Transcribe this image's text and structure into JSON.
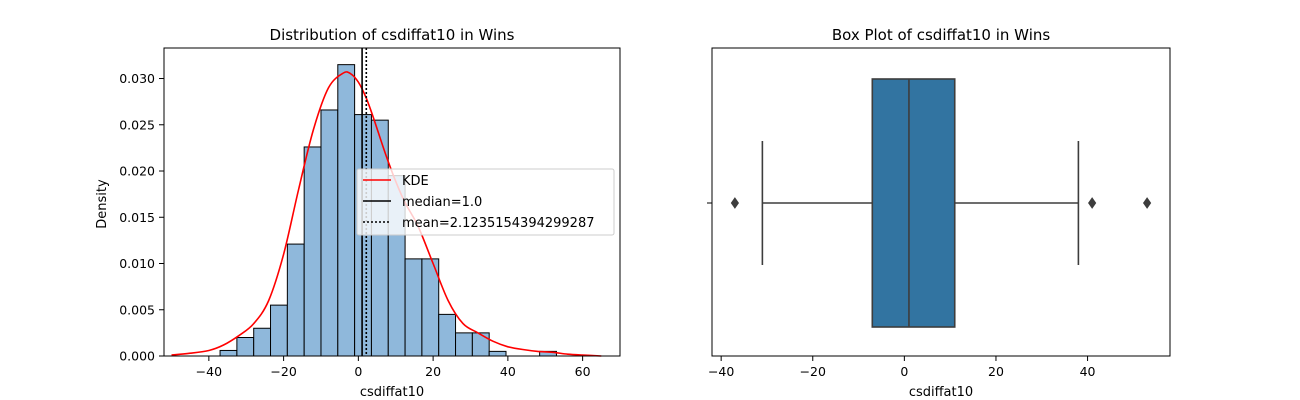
{
  "chart_data": [
    {
      "type": "histogram",
      "title": "Distribution of csdiffat10 in Wins",
      "xlabel": "csdiffat10",
      "ylabel": "Density",
      "xlim": [
        -52,
        70
      ],
      "ylim": [
        0,
        0.0333
      ],
      "xticks": [
        "−40",
        "−20",
        "0",
        "20",
        "40",
        "60"
      ],
      "yticks": [
        "0.000",
        "0.005",
        "0.010",
        "0.015",
        "0.020",
        "0.025",
        "0.030"
      ],
      "bin_width": 4.5,
      "bins": [
        {
          "x0": -37.0,
          "y": 0.0006
        },
        {
          "x0": -32.5,
          "y": 0.002
        },
        {
          "x0": -28.0,
          "y": 0.003
        },
        {
          "x0": -23.5,
          "y": 0.0055
        },
        {
          "x0": -19.0,
          "y": 0.0121
        },
        {
          "x0": -14.5,
          "y": 0.0226
        },
        {
          "x0": -10.0,
          "y": 0.0266
        },
        {
          "x0": -5.5,
          "y": 0.0315
        },
        {
          "x0": -1.0,
          "y": 0.0261
        },
        {
          "x0": 3.5,
          "y": 0.0255
        },
        {
          "x0": 8.0,
          "y": 0.0195
        },
        {
          "x0": 12.5,
          "y": 0.0105
        },
        {
          "x0": 17.0,
          "y": 0.0105
        },
        {
          "x0": 21.5,
          "y": 0.0045
        },
        {
          "x0": 26.0,
          "y": 0.0025
        },
        {
          "x0": 30.5,
          "y": 0.0025
        },
        {
          "x0": 35.0,
          "y": 0.0005
        },
        {
          "x0": 39.5,
          "y": 0.0
        },
        {
          "x0": 44.0,
          "y": 0.0
        },
        {
          "x0": 48.5,
          "y": 0.0005
        }
      ],
      "kde": {
        "x": [
          -50,
          -45,
          -40,
          -36,
          -32,
          -28,
          -24,
          -20,
          -16,
          -12,
          -8,
          -4,
          -2,
          0,
          2,
          4,
          8,
          12,
          16,
          20,
          24,
          28,
          32,
          36,
          40,
          44,
          48,
          52,
          56,
          60,
          65
        ],
        "y": [
          0.0001,
          0.0003,
          0.0006,
          0.0012,
          0.0022,
          0.0035,
          0.006,
          0.011,
          0.018,
          0.0245,
          0.029,
          0.0306,
          0.0305,
          0.0296,
          0.028,
          0.0258,
          0.021,
          0.017,
          0.014,
          0.01,
          0.006,
          0.0035,
          0.0025,
          0.0016,
          0.001,
          0.0007,
          0.0005,
          0.0004,
          0.0002,
          0.0001,
          0.0
        ]
      },
      "median": 1.0,
      "mean": 2.1235154394299287,
      "legend": {
        "position": "center-right",
        "entries": [
          {
            "label": "KDE",
            "color": "#ff0000",
            "style": "solid"
          },
          {
            "label": "median=1.0",
            "color": "#000000",
            "style": "solid"
          },
          {
            "label": "mean=2.1235154394299287",
            "color": "#000000",
            "style": "dotted"
          }
        ]
      },
      "bar_color": "#8fb8db",
      "kde_color": "#ff0000"
    },
    {
      "type": "box",
      "title": "Box Plot of csdiffat10 in Wins",
      "xlabel": "csdiffat10",
      "xlim": [
        -42,
        58
      ],
      "xticks": [
        "−40",
        "−20",
        "0",
        "20",
        "40"
      ],
      "whisker_low": -31,
      "q1": -7,
      "median": 1,
      "q3": 11,
      "whisker_high": 38,
      "outliers": [
        -37,
        41,
        53
      ],
      "box_color": "#3274a1"
    }
  ]
}
